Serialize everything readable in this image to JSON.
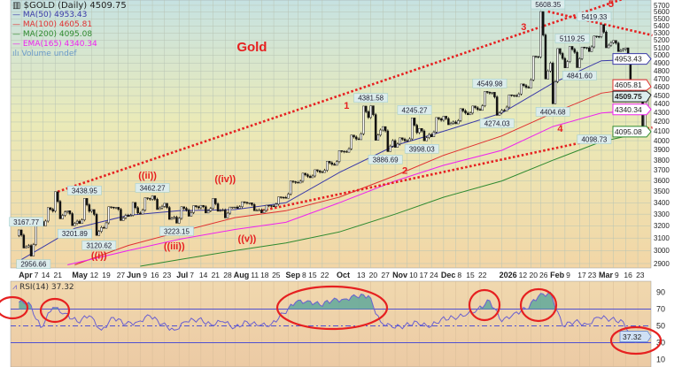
{
  "legend": {
    "title": "$GOLD (Daily) 4509.75",
    "items": [
      {
        "label": "MA(50) 4953.43",
        "color": "#3a3aa8"
      },
      {
        "label": "MA(100) 4605.81",
        "color": "#e03030"
      },
      {
        "label": "MA(200) 4095.08",
        "color": "#2f8a2f"
      },
      {
        "label": "EMA(165) 4340.34",
        "color": "#ee22ee"
      },
      {
        "label": "Volume undef",
        "color": "#6a9ac8"
      }
    ]
  },
  "rsi_legend": "RSI(14) 37.32",
  "chart_data": [
    {
      "type": "candlestick",
      "title": "$GOLD (Daily) 4509.75",
      "y_scale": "log",
      "ylim": [
        2900,
        5700
      ],
      "y_ticks": [
        2900,
        3000,
        3100,
        3200,
        3300,
        3400,
        3500,
        3600,
        3700,
        3800,
        3900,
        4000,
        4100,
        4200,
        4300,
        4400,
        4500,
        4600,
        4700,
        4800,
        4900,
        5000,
        5100,
        5200,
        5300,
        5400,
        5500,
        5600,
        5700
      ],
      "grid": true,
      "x_ticks": [
        [
          "Apr",
          "2025-04-01"
        ],
        [
          "7",
          "2025-04-07"
        ],
        [
          "14",
          "2025-04-14"
        ],
        [
          "21",
          "2025-04-21"
        ],
        [
          "May",
          "2025-05-01"
        ],
        [
          "12",
          "2025-05-12"
        ],
        [
          "19",
          "2025-05-19"
        ],
        [
          "27",
          "2025-05-27"
        ],
        [
          "Jun",
          "2025-06-02"
        ],
        [
          "9",
          "2025-06-09"
        ],
        [
          "16",
          "2025-06-16"
        ],
        [
          "23",
          "2025-06-23"
        ],
        [
          "Jul",
          "2025-07-01"
        ],
        [
          "7",
          "2025-07-07"
        ],
        [
          "14",
          "2025-07-14"
        ],
        [
          "21",
          "2025-07-21"
        ],
        [
          "28",
          "2025-07-28"
        ],
        [
          "Aug",
          "2025-08-01"
        ],
        [
          "11",
          "2025-08-11"
        ],
        [
          "18",
          "2025-08-18"
        ],
        [
          "25",
          "2025-08-25"
        ],
        [
          "Sep",
          "2025-09-02"
        ],
        [
          "8",
          "2025-09-08"
        ],
        [
          "15",
          "2025-09-15"
        ],
        [
          "22",
          "2025-09-22"
        ],
        [
          "Oct",
          "2025-10-01"
        ],
        [
          "13",
          "2025-10-13"
        ],
        [
          "20",
          "2025-10-20"
        ],
        [
          "27",
          "2025-10-27"
        ],
        [
          "Nov",
          "2025-11-03"
        ],
        [
          "10",
          "2025-11-10"
        ],
        [
          "17",
          "2025-11-17"
        ],
        [
          "24",
          "2025-11-24"
        ],
        [
          "Dec",
          "2025-12-01"
        ],
        [
          "8",
          "2025-12-08"
        ],
        [
          "15",
          "2025-12-15"
        ],
        [
          "22",
          "2025-12-22"
        ],
        [
          "2026",
          "2026-01-02"
        ],
        [
          "12",
          "2026-01-12"
        ],
        [
          "20",
          "2026-01-20"
        ],
        [
          "26",
          "2026-01-26"
        ],
        [
          "Feb",
          "2026-02-02"
        ],
        [
          "9",
          "2026-02-09"
        ],
        [
          "17",
          "2026-02-17"
        ],
        [
          "23",
          "2026-02-23"
        ],
        [
          "Mar",
          "2026-03-02"
        ],
        [
          "9",
          "2026-03-09"
        ],
        [
          "16",
          "2026-03-16"
        ],
        [
          "23",
          "2026-03-23"
        ]
      ],
      "weekly_ohlc_start": "2025-03-31",
      "weekly_ohlc": [
        [
          3120,
          3167,
          3020,
          3040
        ],
        [
          3040,
          3245,
          2957,
          3237
        ],
        [
          3237,
          3357,
          3200,
          3327
        ],
        [
          3327,
          3500,
          3260,
          3319
        ],
        [
          3319,
          3330,
          3202,
          3240
        ],
        [
          3240,
          3439,
          3220,
          3325
        ],
        [
          3325,
          3340,
          3121,
          3187
        ],
        [
          3187,
          3365,
          3180,
          3357
        ],
        [
          3357,
          3360,
          3245,
          3290
        ],
        [
          3290,
          3403,
          3280,
          3310
        ],
        [
          3310,
          3445,
          3300,
          3432
        ],
        [
          3432,
          3462,
          3340,
          3368
        ],
        [
          3368,
          3395,
          3255,
          3274
        ],
        [
          3274,
          3365,
          3223,
          3336
        ],
        [
          3336,
          3375,
          3282,
          3355
        ],
        [
          3355,
          3377,
          3310,
          3350
        ],
        [
          3350,
          3438,
          3325,
          3336
        ],
        [
          3336,
          3362,
          3268,
          3362
        ],
        [
          3362,
          3409,
          3350,
          3398
        ],
        [
          3398,
          3400,
          3330,
          3336
        ],
        [
          3336,
          3378,
          3311,
          3372
        ],
        [
          3372,
          3453,
          3365,
          3447
        ],
        [
          3447,
          3600,
          3440,
          3586
        ],
        [
          3586,
          3674,
          3580,
          3643
        ],
        [
          3643,
          3707,
          3630,
          3685
        ],
        [
          3685,
          3790,
          3680,
          3760
        ],
        [
          3760,
          3897,
          3750,
          3886
        ],
        [
          3886,
          4059,
          3880,
          4018
        ],
        [
          4018,
          4379,
          4010,
          4250
        ],
        [
          4250,
          4382,
          4004,
          4113
        ],
        [
          4113,
          4150,
          3887,
          4000
        ],
        [
          4000,
          4030,
          3930,
          4000
        ],
        [
          4000,
          4245,
          3995,
          4085
        ],
        [
          4085,
          4130,
          3998,
          4065
        ],
        [
          4065,
          4250,
          4040,
          4220
        ],
        [
          4220,
          4265,
          4170,
          4200
        ],
        [
          4200,
          4350,
          4180,
          4300
        ],
        [
          4300,
          4380,
          4280,
          4340
        ],
        [
          4340,
          4550,
          4330,
          4530
        ],
        [
          4530,
          4540,
          4274,
          4330
        ],
        [
          4330,
          4510,
          4320,
          4500
        ],
        [
          4500,
          4640,
          4490,
          4600
        ],
        [
          4600,
          4990,
          4590,
          4980
        ],
        [
          4980,
          5608,
          4700,
          4900
        ],
        [
          4900,
          5090,
          4405,
          4960
        ],
        [
          4960,
          5119,
          4840,
          5040
        ],
        [
          5040,
          5110,
          4842,
          5100
        ],
        [
          5100,
          5260,
          5050,
          5250
        ],
        [
          5250,
          5419,
          5100,
          5170
        ],
        [
          5170,
          5200,
          5050,
          5080
        ],
        [
          5080,
          5100,
          4500,
          4550
        ],
        [
          4550,
          4620,
          4099,
          4509.75
        ]
      ],
      "series": [
        {
          "name": "MA(50)",
          "color": "#3a3aa8",
          "last": "4953.43",
          "points": [
            [
              "2025-04-01",
              2930
            ],
            [
              "2025-05-01",
              3180
            ],
            [
              "2025-06-02",
              3290
            ],
            [
              "2025-07-01",
              3330
            ],
            [
              "2025-08-01",
              3340
            ],
            [
              "2025-09-01",
              3400
            ],
            [
              "2025-10-01",
              3680
            ],
            [
              "2025-11-03",
              3950
            ],
            [
              "2025-12-01",
              4100
            ],
            [
              "2026-01-02",
              4300
            ],
            [
              "2026-02-02",
              4650
            ],
            [
              "2026-03-02",
              4930
            ],
            [
              "2026-03-27",
              4953.43
            ]
          ]
        },
        {
          "name": "MA(100)",
          "color": "#e03030",
          "last": "4605.81",
          "points": [
            [
              "2025-05-01",
              2890
            ],
            [
              "2025-06-02",
              3040
            ],
            [
              "2025-07-01",
              3150
            ],
            [
              "2025-08-01",
              3270
            ],
            [
              "2025-09-01",
              3330
            ],
            [
              "2025-10-01",
              3450
            ],
            [
              "2025-11-03",
              3650
            ],
            [
              "2025-12-01",
              3850
            ],
            [
              "2026-01-02",
              4050
            ],
            [
              "2026-02-02",
              4300
            ],
            [
              "2026-03-02",
              4530
            ],
            [
              "2026-03-27",
              4605.81
            ]
          ]
        },
        {
          "name": "MA(200)",
          "color": "#2f8a2f",
          "last": "4095.08",
          "points": [
            [
              "2025-06-09",
              2880
            ],
            [
              "2025-07-01",
              2930
            ],
            [
              "2025-08-01",
              3000
            ],
            [
              "2025-09-01",
              3060
            ],
            [
              "2025-10-01",
              3150
            ],
            [
              "2025-11-03",
              3300
            ],
            [
              "2025-12-01",
              3450
            ],
            [
              "2026-01-02",
              3600
            ],
            [
              "2026-02-02",
              3800
            ],
            [
              "2026-03-02",
              3990
            ],
            [
              "2026-03-27",
              4095.08
            ]
          ]
        },
        {
          "name": "EMA(165)",
          "color": "#ee22ee",
          "last": "4340.34",
          "points": [
            [
              "2025-04-28",
              2890
            ],
            [
              "2025-06-02",
              3000
            ],
            [
              "2025-07-01",
              3090
            ],
            [
              "2025-08-01",
              3170
            ],
            [
              "2025-09-01",
              3230
            ],
            [
              "2025-10-01",
              3400
            ],
            [
              "2025-11-03",
              3600
            ],
            [
              "2025-12-01",
              3750
            ],
            [
              "2026-01-02",
              3900
            ],
            [
              "2026-02-02",
              4150
            ],
            [
              "2026-03-02",
              4300
            ],
            [
              "2026-03-27",
              4340.34
            ]
          ]
        }
      ],
      "last_price": "4509.75",
      "data_labels": [
        {
          "text": "3167.77",
          "date": "2025-04-03",
          "price": 3167.77,
          "pos": "above"
        },
        {
          "text": "2956.66",
          "date": "2025-04-08",
          "price": 2956.66,
          "pos": "below"
        },
        {
          "text": "3438.95",
          "date": "2025-05-07",
          "price": 3438.95,
          "pos": "above"
        },
        {
          "text": "3201.89",
          "date": "2025-05-01",
          "price": 3201.89,
          "pos": "below"
        },
        {
          "text": "3120.62",
          "date": "2025-05-15",
          "price": 3120.62,
          "pos": "below"
        },
        {
          "text": "3462.27",
          "date": "2025-06-16",
          "price": 3462.27,
          "pos": "above"
        },
        {
          "text": "3223.15",
          "date": "2025-06-30",
          "price": 3223.15,
          "pos": "below"
        },
        {
          "text": "4381.58",
          "date": "2025-10-20",
          "price": 4381.58,
          "pos": "above"
        },
        {
          "text": "3886.69",
          "date": "2025-10-28",
          "price": 3886.69,
          "pos": "below"
        },
        {
          "text": "4245.27",
          "date": "2025-11-13",
          "price": 4245.27,
          "pos": "above"
        },
        {
          "text": "3998.03",
          "date": "2025-11-18",
          "price": 3998.03,
          "pos": "below"
        },
        {
          "text": "4549.98",
          "date": "2025-12-26",
          "price": 4549.98,
          "pos": "above"
        },
        {
          "text": "4274.03",
          "date": "2025-12-31",
          "price": 4274.03,
          "pos": "below"
        },
        {
          "text": "5608.35",
          "date": "2026-01-29",
          "price": 5608.35,
          "pos": "above"
        },
        {
          "text": "4404.68",
          "date": "2026-02-02",
          "price": 4404.68,
          "pos": "below"
        },
        {
          "text": "5119.25",
          "date": "2026-02-12",
          "price": 5119.25,
          "pos": "above"
        },
        {
          "text": "4841.60",
          "date": "2026-02-17",
          "price": 4841.6,
          "pos": "below"
        },
        {
          "text": "5419.33",
          "date": "2026-03-02",
          "price": 5419.33,
          "pos": "above"
        },
        {
          "text": "4098.73",
          "date": "2026-03-23",
          "price": 4098.73,
          "pos": "below"
        }
      ],
      "annotations": [
        {
          "text": "Gold",
          "date": "2025-08-12",
          "price": 5054,
          "size": "large"
        },
        {
          "text": "1",
          "date": "2025-10-06",
          "price": 4350
        },
        {
          "text": "2",
          "date": "2025-11-07",
          "price": 3700
        },
        {
          "text": "3",
          "date": "2026-01-15",
          "price": 5342
        },
        {
          "text": "4",
          "date": "2026-02-05",
          "price": 4096
        },
        {
          "text": "5",
          "date": "2026-03-06",
          "price": 5820
        },
        {
          "text": "((i))",
          "date": "2025-05-15",
          "price": 2950
        },
        {
          "text": "((ii))",
          "date": "2025-06-12",
          "price": 3590
        },
        {
          "text": "((iii))",
          "date": "2025-06-27",
          "price": 3010
        },
        {
          "text": "((iv))",
          "date": "2025-07-28",
          "price": 3590
        },
        {
          "text": "((v))",
          "date": "2025-08-08",
          "price": 3070
        }
      ],
      "trendlines": [
        {
          "from": [
            "2025-04-22",
            3500
          ],
          "to": [
            "2026-01-29",
            5608
          ],
          "extend_to": [
            "2026-03-31",
            5950
          ]
        },
        {
          "from": [
            "2026-01-29",
            5608
          ],
          "to": [
            "2026-03-31",
            5270
          ]
        },
        {
          "from": [
            "2025-08-18",
            3330
          ],
          "to": [
            "2026-03-31",
            4140
          ]
        }
      ],
      "accent_color": "#e62020"
    },
    {
      "type": "line",
      "title": "RSI(14) 37.32",
      "ylim": [
        0,
        100
      ],
      "y_ticks": [
        10,
        30,
        50,
        70,
        90
      ],
      "reference_lines": [
        30,
        50,
        70
      ],
      "last": "37.32",
      "color": "#6a60d0",
      "fill_above_70": "#5fa89a",
      "weekly_values": [
        78,
        48,
        72,
        65,
        55,
        62,
        45,
        60,
        52,
        55,
        62,
        52,
        45,
        55,
        58,
        52,
        55,
        48,
        55,
        50,
        52,
        65,
        78,
        80,
        75,
        80,
        82,
        85,
        86,
        55,
        48,
        50,
        55,
        48,
        58,
        60,
        62,
        70,
        80,
        55,
        65,
        70,
        85,
        90,
        50,
        55,
        52,
        60,
        58,
        55,
        30,
        37.32
      ]
    }
  ]
}
